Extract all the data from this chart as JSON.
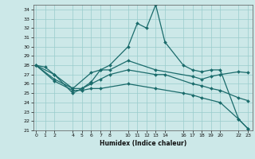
{
  "xlabel": "Humidex (Indice chaleur)",
  "bg_color": "#cce8e8",
  "line_color": "#1a6b6b",
  "grid_color": "#99cccc",
  "ylim": [
    21,
    34.5
  ],
  "yticks": [
    21,
    22,
    23,
    24,
    25,
    26,
    27,
    28,
    29,
    30,
    31,
    32,
    33,
    34
  ],
  "xticks": [
    0,
    1,
    2,
    4,
    5,
    6,
    7,
    8,
    10,
    11,
    12,
    13,
    14,
    16,
    17,
    18,
    19,
    20,
    22,
    23
  ],
  "xlim": [
    -0.3,
    23.5
  ],
  "lines": [
    {
      "x": [
        0,
        1,
        2,
        4,
        5,
        6,
        7,
        8,
        10,
        11,
        12,
        13,
        14,
        16,
        17,
        18,
        19,
        20,
        22,
        23
      ],
      "y": [
        28,
        27.8,
        27.0,
        25.0,
        25.5,
        26.2,
        27.5,
        28.0,
        30.0,
        32.5,
        32.0,
        34.5,
        30.5,
        28.0,
        27.5,
        27.3,
        27.5,
        27.5,
        22.2,
        21.2
      ]
    },
    {
      "x": [
        0,
        2,
        4,
        6,
        7,
        8,
        10,
        13,
        17,
        18,
        19,
        20,
        22,
        23
      ],
      "y": [
        28,
        27.0,
        25.5,
        27.2,
        27.5,
        27.5,
        28.5,
        27.5,
        26.8,
        26.5,
        26.8,
        27.0,
        27.3,
        27.2
      ]
    },
    {
      "x": [
        0,
        2,
        4,
        5,
        6,
        7,
        8,
        10,
        13,
        14,
        17,
        18,
        19,
        20,
        22,
        23
      ],
      "y": [
        28,
        26.5,
        25.5,
        25.5,
        26.0,
        26.5,
        27.0,
        27.5,
        27.0,
        27.0,
        26.0,
        25.8,
        25.5,
        25.3,
        24.5,
        24.2
      ]
    },
    {
      "x": [
        0,
        2,
        4,
        5,
        6,
        7,
        10,
        13,
        16,
        17,
        18,
        20,
        22,
        23
      ],
      "y": [
        28,
        26.3,
        25.3,
        25.3,
        25.5,
        25.5,
        26.0,
        25.5,
        25.0,
        24.8,
        24.5,
        24.0,
        22.2,
        21.2
      ]
    }
  ]
}
